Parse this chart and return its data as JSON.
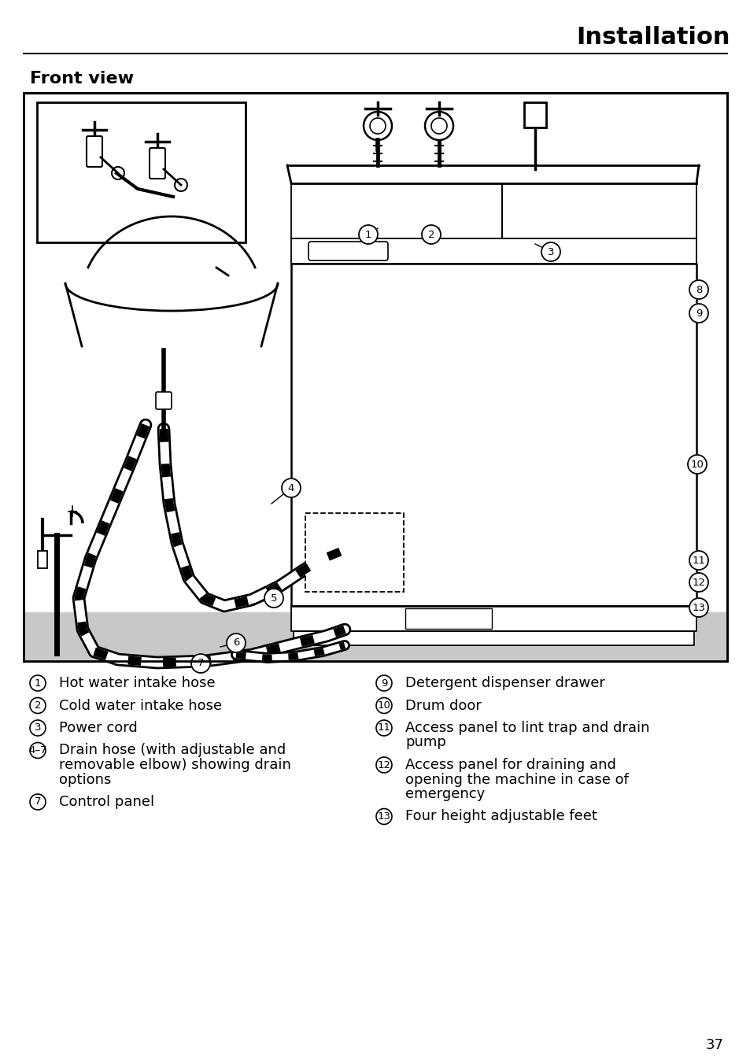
{
  "page_title": "Installation",
  "section_title": "Front view",
  "page_number": "37",
  "background_color": "#ffffff",
  "legend_left_items": [
    [
      "1",
      "Hot water intake hose"
    ],
    [
      "2",
      "Cold water intake hose"
    ],
    [
      "3",
      "Power cord"
    ],
    [
      "4_7",
      "Drain hose (with adjustable and\nremovable elbow) showing drain\noptions"
    ],
    [
      "7",
      "Control panel"
    ]
  ],
  "legend_right_items": [
    [
      "9",
      "Detergent dispenser drawer"
    ],
    [
      "10",
      "Drum door"
    ],
    [
      "11",
      "Access panel to lint trap and drain\npump"
    ],
    [
      "12",
      "Access panel for draining and\nopening the machine in case of\nemergency"
    ],
    [
      "13",
      "Four height adjustable feet"
    ]
  ],
  "gray_strip_color": "#c8c8c8",
  "line_color": "#000000",
  "title_fontsize": 22,
  "section_fontsize": 16,
  "legend_fontsize": 13,
  "page_num_fontsize": 13
}
